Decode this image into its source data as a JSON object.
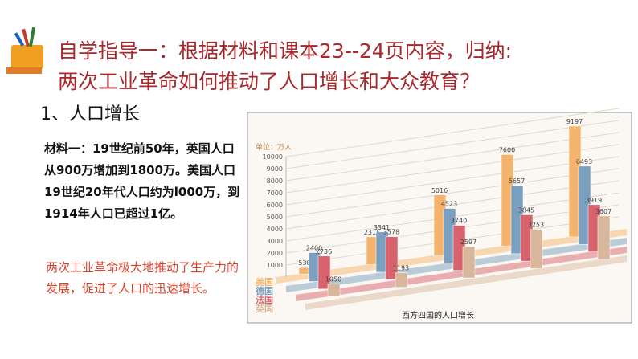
{
  "header": {
    "title": [
      "自学指导一：根据材料和课本23--24页内容，归纳:",
      "两次工业革命如何推动了人口增长和大众教育？"
    ]
  },
  "section": "1、人口增长",
  "material": "材料一：19世纪前50年，英国人口从900万增加到1800万。美国人口19世纪20年代人口约为l000万，到1914年人口已超过1亿。",
  "conclusion": "两次工业革命极大地推动了生产力的发展，促进了人口的迅速增长。",
  "chart_data": {
    "type": "bar",
    "title": "西方四国的人口增长",
    "y_label": "单位：万人",
    "categories": [
      null,
      null,
      null,
      null,
      null
    ],
    "series": [
      {
        "name": "美国",
        "color": "#f5b46e",
        "values": [
          530,
          2315,
          5016,
          7600,
          9197
        ]
      },
      {
        "name": "德国",
        "color": "#7b9fbf",
        "values": [
          2400,
          3341,
          4523,
          5657,
          6493
        ]
      },
      {
        "name": "法国",
        "color": "#d8636d",
        "values": [
          2736,
          3578,
          3740,
          3845,
          3919
        ]
      },
      {
        "name": "英国",
        "color": "#d9b79d",
        "values": [
          1050,
          1193,
          2597,
          3253,
          3607
        ]
      }
    ],
    "ylim": [
      0,
      10000
    ],
    "yticks": [
      1000,
      2000,
      3000,
      4000,
      5000,
      6000,
      7000,
      8000,
      9000,
      10000
    ]
  }
}
